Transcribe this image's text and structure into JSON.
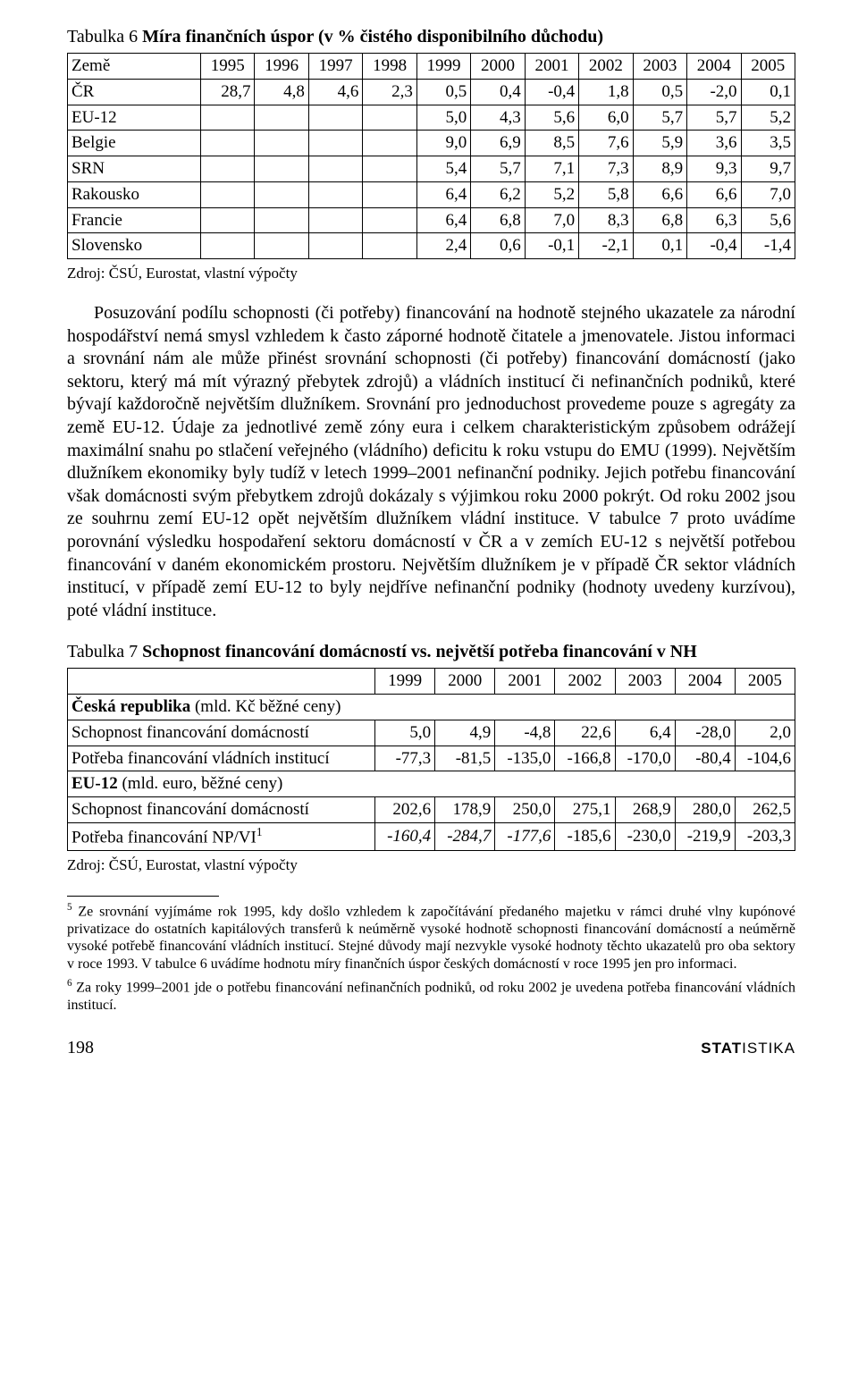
{
  "table6": {
    "title_lead": "Tabulka 6 ",
    "title_bold": "Míra finančních úspor (v % čistého disponibilního důchodu)",
    "header_label": "Země",
    "years": [
      "1995",
      "1996",
      "1997",
      "1998",
      "1999",
      "2000",
      "2001",
      "2002",
      "2003",
      "2004",
      "2005"
    ],
    "rows": [
      {
        "label": "ČR",
        "v": [
          "28,7",
          "4,8",
          "4,6",
          "2,3",
          "0,5",
          "0,4",
          "-0,4",
          "1,8",
          "0,5",
          "-2,0",
          "0,1"
        ]
      },
      {
        "label": "EU-12",
        "v": [
          "",
          "",
          "",
          "",
          "5,0",
          "4,3",
          "5,6",
          "6,0",
          "5,7",
          "5,7",
          "5,2"
        ]
      },
      {
        "label": "Belgie",
        "v": [
          "",
          "",
          "",
          "",
          "9,0",
          "6,9",
          "8,5",
          "7,6",
          "5,9",
          "3,6",
          "3,5"
        ]
      },
      {
        "label": "SRN",
        "v": [
          "",
          "",
          "",
          "",
          "5,4",
          "5,7",
          "7,1",
          "7,3",
          "8,9",
          "9,3",
          "9,7"
        ]
      },
      {
        "label": "Rakousko",
        "v": [
          "",
          "",
          "",
          "",
          "6,4",
          "6,2",
          "5,2",
          "5,8",
          "6,6",
          "6,6",
          "7,0"
        ]
      },
      {
        "label": "Francie",
        "v": [
          "",
          "",
          "",
          "",
          "6,4",
          "6,8",
          "7,0",
          "8,3",
          "6,8",
          "6,3",
          "5,6"
        ]
      },
      {
        "label": "Slovensko",
        "v": [
          "",
          "",
          "",
          "",
          "2,4",
          "0,6",
          "-0,1",
          "-2,1",
          "0,1",
          "-0,4",
          "-1,4"
        ]
      }
    ],
    "source": "Zdroj: ČSÚ, Eurostat, vlastní výpočty",
    "font_size": 19,
    "border_color": "#000000"
  },
  "paragraph": "Posuzování podílu schopnosti (či potřeby) financování na hodnotě stejného ukazatele za národní hospodářství nemá smysl vzhledem k často záporné hodnotě čitatele a jmenovatele. Jistou informaci a srovnání nám ale může přinést srovnání schopnosti (či potřeby) financování domácností (jako sektoru, který má mít výrazný přebytek zdrojů) a vládních institucí či nefinančních podniků, které bývají každoročně největším dlužníkem. Srovnání pro jednoduchost provedeme pouze s agregáty za země EU-12. Údaje za jednotlivé země zóny eura i celkem charakteristickým způsobem odrážejí maximální snahu po stlačení veřejného (vládního) deficitu k roku vstupu do EMU (1999). Největším dlužníkem ekonomiky byly tudíž v letech 1999–2001 nefinanční podniky. Jejich potřebu financování však domácnosti svým přebytkem zdrojů dokázaly s výjimkou roku 2000 pokrýt. Od roku 2002 jsou ze souhrnu zemí EU-12 opět největším dlužníkem vládní instituce. V tabulce 7 proto uvádíme porovnání výsledku hospodaření sektoru domácností v ČR a v zemích EU-12 s největší potřebou financování v daném ekonomickém prostoru. Největším dlužníkem je v případě ČR sektor vládních institucí, v případě zemí EU-12 to byly nejdříve nefinanční podniky (hodnoty uvedeny kurzívou), poté vládní instituce.",
  "table7": {
    "title_lead": "Tabulka 7 ",
    "title_bold": "Schopnost financování domácností vs. největší potřeba financování v NH",
    "years": [
      "1999",
      "2000",
      "2001",
      "2002",
      "2003",
      "2004",
      "2005"
    ],
    "section1": "Česká republika",
    "section1_paren": " (mld. Kč běžné ceny)",
    "r1_label": "Schopnost financování domácností",
    "r1_v": [
      "5,0",
      "4,9",
      "-4,8",
      "22,6",
      "6,4",
      "-28,0",
      "2,0"
    ],
    "r2_label": "Potřeba financování vládních institucí",
    "r2_v": [
      "-77,3",
      "-81,5",
      "-135,0",
      "-166,8",
      "-170,0",
      "-80,4",
      "-104,6"
    ],
    "section2": "EU-12",
    "section2_paren": " (mld. euro, běžné ceny)",
    "r3_label": "Schopnost financování domácností",
    "r3_v": [
      "202,6",
      "178,9",
      "250,0",
      "275,1",
      "268,9",
      "280,0",
      "262,5"
    ],
    "r4_label_a": "Potřeba financování NP/VI",
    "r4_sup": "1",
    "r4_v": [
      "-160,4",
      "-284,7",
      "-177,6",
      "-185,6",
      "-230,0",
      "-219,9",
      "-203,3"
    ],
    "r4_italic_cols": [
      0,
      1,
      2
    ],
    "source": "Zdroj: ČSÚ, Eurostat, vlastní výpočty",
    "font_size": 19,
    "border_color": "#000000"
  },
  "footnotes": {
    "n5_marker": "5",
    "n5_text": " Ze srovnání vyjímáme rok 1995, kdy došlo vzhledem k započítávání předaného majetku v rámci druhé vlny kupónové privatizace do ostatních kapitálových transferů k neúměrně vysoké hodnotě schopnosti financování domácností a neúměrně vysoké potřebě financování vládních institucí. Stejné důvody mají nezvykle vysoké hodnoty těchto ukazatelů pro oba sektory v roce 1993. V tabulce 6 uvádíme hodnotu míry finančních úspor českých domácností v roce 1995 jen pro informaci.",
    "n6_marker": "6",
    "n6_text": " Za roky 1999–2001 jde o potřebu financování nefinančních podniků, od roku 2002 je uvedena potřeba financování vládních institucí."
  },
  "footer": {
    "page": "198",
    "brand_bold": "STAT",
    "brand_rest": "ISTIKA"
  },
  "colors": {
    "text": "#000000",
    "background": "#ffffff",
    "border": "#000000"
  }
}
